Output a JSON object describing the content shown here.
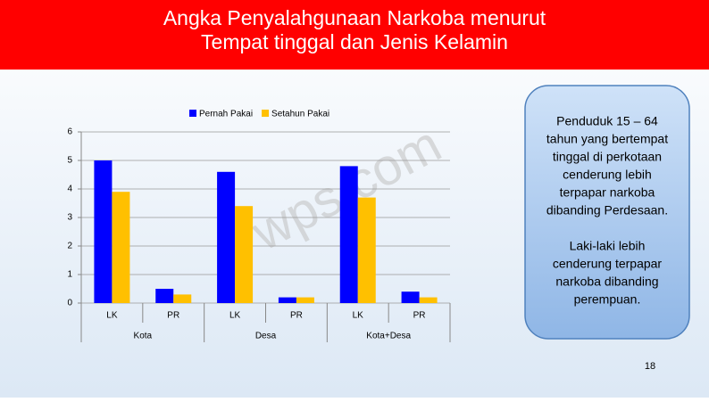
{
  "slide": {
    "title": [
      "Angka Penyalahgunaan Narkoba menurut",
      "Tempat tinggal dan Jenis Kelamin"
    ],
    "note": [
      [
        "Penduduk 15 – 64",
        "tahun yang bertempat",
        "tinggal di perkotaan",
        "cenderung lebih",
        "terpapar narkoba",
        "dibanding Perdesaan."
      ],
      [
        "Laki-laki lebih",
        "cenderung terpapar",
        "narkoba dibanding",
        "perempuan."
      ]
    ],
    "page_number": "18",
    "watermark": "wps.com"
  },
  "chart_data": {
    "type": "bar",
    "categories": [
      "LK",
      "PR",
      "LK",
      "PR",
      "LK",
      "PR"
    ],
    "category_groups": [
      "Kota",
      "Desa",
      "Kota+Desa"
    ],
    "series": [
      {
        "name": "Pernah Pakai",
        "color": "#0000ff",
        "values": [
          5.0,
          0.5,
          4.6,
          0.2,
          4.8,
          0.4
        ]
      },
      {
        "name": "Setahun Pakai",
        "color": "#ffc000",
        "values": [
          3.9,
          0.3,
          3.4,
          0.2,
          3.7,
          0.2
        ]
      }
    ],
    "ylim": [
      0,
      6
    ],
    "yticks": [
      0,
      1,
      2,
      3,
      4,
      5,
      6
    ],
    "grid": true,
    "legend": "top"
  }
}
